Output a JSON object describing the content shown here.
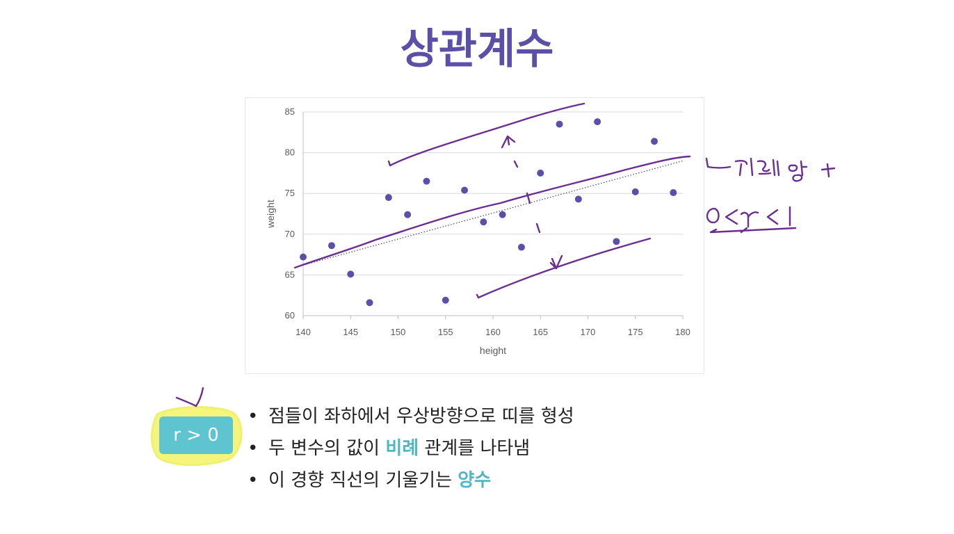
{
  "slide": {
    "title": "상관계수",
    "badge_text": "r > 0",
    "bullets": [
      {
        "parts": [
          {
            "text": "점들이 좌하에서 우상방향으로 띠를 형성",
            "accent": false
          }
        ]
      },
      {
        "parts": [
          {
            "text": "두 변수의 값이 ",
            "accent": false
          },
          {
            "text": "비례",
            "accent": true
          },
          {
            "text": " 관계를 나타냄",
            "accent": false
          }
        ]
      },
      {
        "parts": [
          {
            "text": "이 경향 직선의 기울기는 ",
            "accent": false
          },
          {
            "text": "양수",
            "accent": true
          }
        ]
      }
    ],
    "handwritten_notes": [
      "ㄴ기울기 양 +",
      "0 < r < 1"
    ],
    "colors": {
      "title": "#5b4fa8",
      "points": "#5b4fa8",
      "accent": "#4fb6c4",
      "ink": "#6a2d91",
      "highlight": "#f4f57a"
    }
  },
  "chart_data": {
    "type": "scatter",
    "title": "",
    "xlabel": "height",
    "ylabel": "weight",
    "xlim": [
      140,
      180
    ],
    "ylim": [
      60,
      85
    ],
    "xticks": [
      140,
      145,
      150,
      155,
      160,
      165,
      170,
      175,
      180
    ],
    "yticks": [
      60,
      65,
      70,
      75,
      80,
      85
    ],
    "grid": "horizontal",
    "trendline": {
      "style": "dotted",
      "from": [
        140,
        66.2
      ],
      "to": [
        180,
        79.0
      ]
    },
    "series": [
      {
        "points": [
          [
            140,
            67.2
          ],
          [
            143,
            68.6
          ],
          [
            145,
            65.1
          ],
          [
            147,
            61.6
          ],
          [
            149,
            74.5
          ],
          [
            151,
            72.4
          ],
          [
            153,
            76.5
          ],
          [
            155,
            61.9
          ],
          [
            157,
            75.4
          ],
          [
            159,
            71.5
          ],
          [
            161,
            72.4
          ],
          [
            163,
            68.4
          ],
          [
            165,
            77.5
          ],
          [
            167,
            83.5
          ],
          [
            169,
            74.3
          ],
          [
            171,
            83.8
          ],
          [
            173,
            69.1
          ],
          [
            175,
            75.2
          ],
          [
            177,
            81.4
          ],
          [
            179,
            75.1
          ]
        ]
      }
    ]
  }
}
